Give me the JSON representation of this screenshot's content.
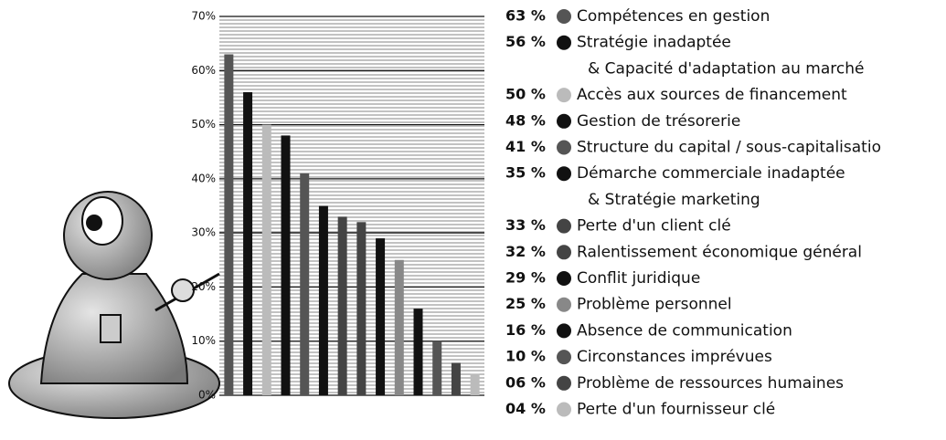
{
  "chart_data": {
    "type": "bar",
    "categories": [
      [
        "Compétences en gestion"
      ],
      [
        "Stratégie inadaptée",
        "& Capacité d'adaptation au marché"
      ],
      [
        "Accès aux sources de financement"
      ],
      [
        "Gestion de trésorerie"
      ],
      [
        "Structure du capital / sous-capitalisatio"
      ],
      [
        "Démarche commerciale inadaptée",
        "& Stratégie marketing"
      ],
      [
        "Perte d'un client clé"
      ],
      [
        "Ralentissement économique général"
      ],
      [
        "Conflit juridique"
      ],
      [
        "Problème personnel"
      ],
      [
        "Absence de communication"
      ],
      [
        "Circonstances imprévues"
      ],
      [
        "Problème de ressources humaines"
      ],
      [
        "Perte d'un fournisseur clé"
      ]
    ],
    "values": [
      63,
      56,
      50,
      48,
      41,
      35,
      33,
      32,
      29,
      25,
      16,
      10,
      6,
      4
    ],
    "value_labels": [
      "63 %",
      "56 %",
      "50 %",
      "48 %",
      "41 %",
      "35 %",
      "33 %",
      "32 %",
      "29 %",
      "25 %",
      "16 %",
      "10 %",
      "06 %",
      "04 %"
    ],
    "colors": [
      "#555555",
      "#111111",
      "#bbbbbb",
      "#111111",
      "#555555",
      "#111111",
      "#444444",
      "#444444",
      "#111111",
      "#888888",
      "#111111",
      "#555555",
      "#444444",
      "#bbbbbb"
    ],
    "ylim": [
      0,
      70
    ],
    "yticks": [
      {
        "value": 0,
        "label": "0%"
      },
      {
        "value": 10,
        "label": "10%"
      },
      {
        "value": 20,
        "label": "20%"
      },
      {
        "value": 30,
        "label": "30%"
      },
      {
        "value": 40,
        "label": "40%"
      },
      {
        "value": 50,
        "label": "50%"
      },
      {
        "value": 60,
        "label": "60%"
      },
      {
        "value": 70,
        "label": "70%"
      }
    ],
    "grid": true
  }
}
